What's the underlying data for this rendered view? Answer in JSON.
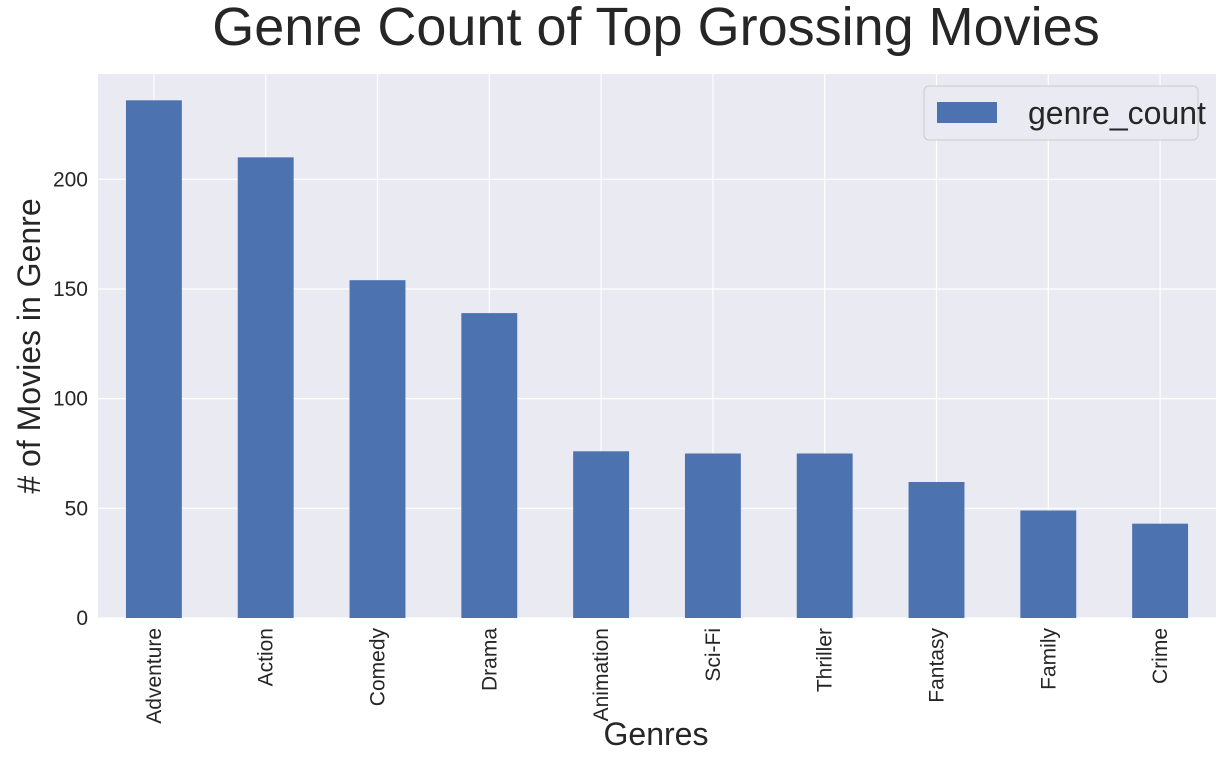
{
  "chart_data": {
    "type": "bar",
    "title": "Genre Count of Top Grossing Movies",
    "xlabel": "Genres",
    "ylabel": "# of Movies in Genre",
    "categories": [
      "Adventure",
      "Action",
      "Comedy",
      "Drama",
      "Animation",
      "Sci-Fi",
      "Thriller",
      "Fantasy",
      "Family",
      "Crime"
    ],
    "series": [
      {
        "name": "genre_count",
        "values": [
          236,
          210,
          154,
          139,
          76,
          75,
          75,
          62,
          49,
          43
        ]
      }
    ],
    "ylim": [
      0,
      248
    ],
    "yticks": [
      0,
      50,
      100,
      150,
      200
    ],
    "grid": true,
    "legend": "top-right",
    "colors": {
      "bar": "#4c72b0",
      "plot_bg": "#eaeaf2",
      "grid": "#ffffff"
    }
  }
}
